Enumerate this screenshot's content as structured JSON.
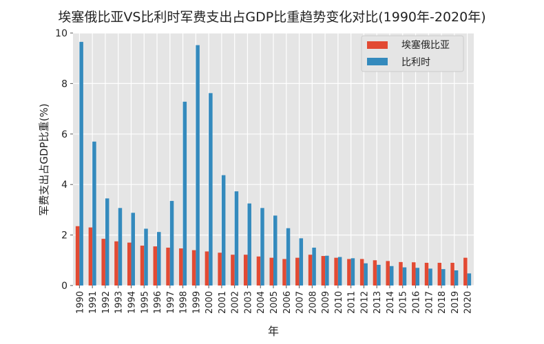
{
  "chart_data": {
    "type": "bar",
    "title": "埃塞俄比亚VS比利时军费支出占GDP比重趋势变化对比(1990年-2020年)",
    "xlabel": "年",
    "ylabel": "军费支出占GDP比重(%)",
    "ylim": [
      0,
      10
    ],
    "yticks": [
      0,
      2,
      4,
      6,
      8,
      10
    ],
    "grid": true,
    "legend_position": "top-right",
    "categories": [
      "1990",
      "1991",
      "1992",
      "1993",
      "1994",
      "1995",
      "1996",
      "1997",
      "1998",
      "1999",
      "2000",
      "2001",
      "2002",
      "2003",
      "2004",
      "2005",
      "2006",
      "2007",
      "2008",
      "2009",
      "2010",
      "2011",
      "2012",
      "2013",
      "2014",
      "2015",
      "2016",
      "2017",
      "2018",
      "2019",
      "2020"
    ],
    "series": [
      {
        "name": "埃塞俄比亚",
        "color": "#E24A33",
        "values": [
          2.35,
          2.3,
          1.85,
          1.75,
          1.7,
          1.58,
          1.55,
          1.5,
          1.47,
          1.4,
          1.35,
          1.3,
          1.22,
          1.22,
          1.15,
          1.1,
          1.05,
          1.1,
          1.22,
          1.17,
          1.1,
          1.05,
          1.05,
          1.0,
          0.97,
          0.93,
          0.92,
          0.9,
          0.9,
          0.9,
          1.1
        ]
      },
      {
        "name": "比利时",
        "color": "#348ABD",
        "values": [
          9.65,
          5.7,
          3.45,
          3.07,
          2.88,
          2.25,
          2.12,
          3.35,
          7.28,
          9.52,
          7.62,
          4.37,
          3.73,
          3.25,
          3.07,
          2.77,
          2.27,
          1.87,
          1.5,
          1.18,
          1.13,
          1.08,
          0.88,
          0.82,
          0.77,
          0.72,
          0.7,
          0.67,
          0.65,
          0.6,
          0.48
        ]
      }
    ]
  }
}
